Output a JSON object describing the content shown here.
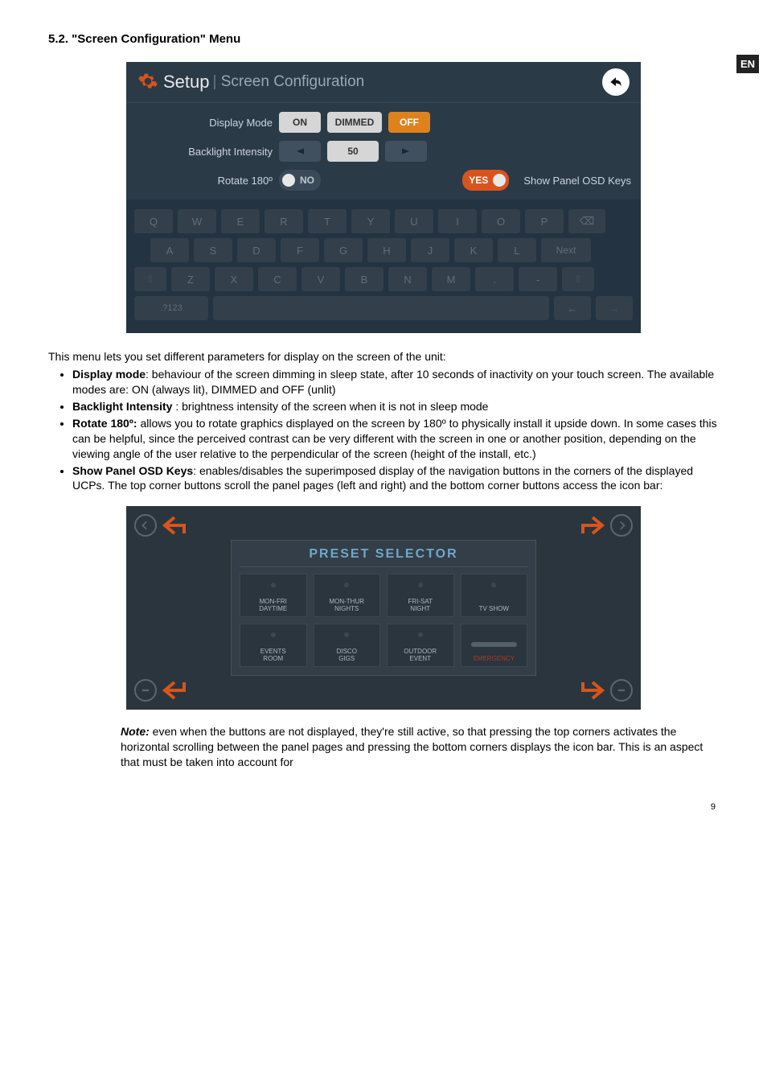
{
  "page": {
    "lang_badge": "EN",
    "section_title": "5.2. \"Screen Configuration\" Menu",
    "footer": "9"
  },
  "setup": {
    "title": "Setup",
    "subtitle": "Screen Configuration",
    "display_mode_label": "Display Mode",
    "display_mode_options": {
      "on": "ON",
      "dimmed": "DIMMED",
      "off": "OFF"
    },
    "backlight_label": "Backlight Intensity",
    "backlight_value": "50",
    "rotate_label": "Rotate 180º",
    "rotate_value": "NO",
    "osd_toggle": "YES",
    "osd_label": "Show Panel OSD Keys",
    "keyboard": {
      "row1": [
        "Q",
        "W",
        "E",
        "R",
        "T",
        "Y",
        "U",
        "I",
        "O",
        "P",
        "⌫"
      ],
      "row2": [
        "A",
        "S",
        "D",
        "F",
        "G",
        "H",
        "J",
        "K",
        "L",
        "Next"
      ],
      "row3": [
        "⇧",
        "Z",
        "X",
        "C",
        "V",
        "B",
        "N",
        "M",
        ".",
        "-",
        "⇧"
      ],
      "row4_left": ".?123"
    }
  },
  "body": {
    "intro": "This menu lets you set different parameters for display on the screen of the unit:",
    "bullets": [
      {
        "bold": "Display mode",
        "text": ": behaviour of the screen dimming in sleep state, after 10 seconds of inactivity on your touch screen. The available modes are: ON (always lit), DIMMED and OFF (unlit)"
      },
      {
        "bold": "Backlight Intensity",
        "text": " : brightness intensity of the screen when it is not in sleep mode"
      },
      {
        "bold": "Rotate  180º:",
        "text": " allows you to rotate graphics displayed on the screen by 180º to physically install it upside down. In some cases this can be helpful, since the perceived contrast can be very different with the screen in one or another position, depending on the viewing angle of the user relative to the perpendicular of the screen (height of the install, etc.)"
      },
      {
        "bold": "Show Panel OSD Keys",
        "text": ": enables/disables the superimposed display of the navigation buttons in the corners of the displayed UCPs. The top corner buttons scroll the panel pages (left and right) and the bottom corner buttons access the icon bar:"
      }
    ]
  },
  "preset": {
    "title": "PRESET SELECTOR",
    "cells": [
      "MON-FRI\nDAYTIME",
      "MON-THUR\nNIGHTS",
      "FRI-SAT\nNIGHT",
      "TV SHOW",
      "EVENTS\nROOM",
      "DISCO\nGIGS",
      "OUTDOOR\nEVENT",
      "EMERGENCY"
    ]
  },
  "note": {
    "label": "Note:",
    "text": " even when the buttons are not displayed, they're still active, so that pressing the top corners activates the horizontal scrolling between the panel pages and pressing the bottom corners displays the icon bar. This is an aspect that must be taken into account for"
  },
  "colors": {
    "badge_bg": "#222222",
    "setup_bg": "#2b3a47",
    "orange": "#e0821c",
    "orange_dark": "#d9541c",
    "pill_light": "#d6d6d6",
    "preset_title": "#6fa8c9"
  }
}
